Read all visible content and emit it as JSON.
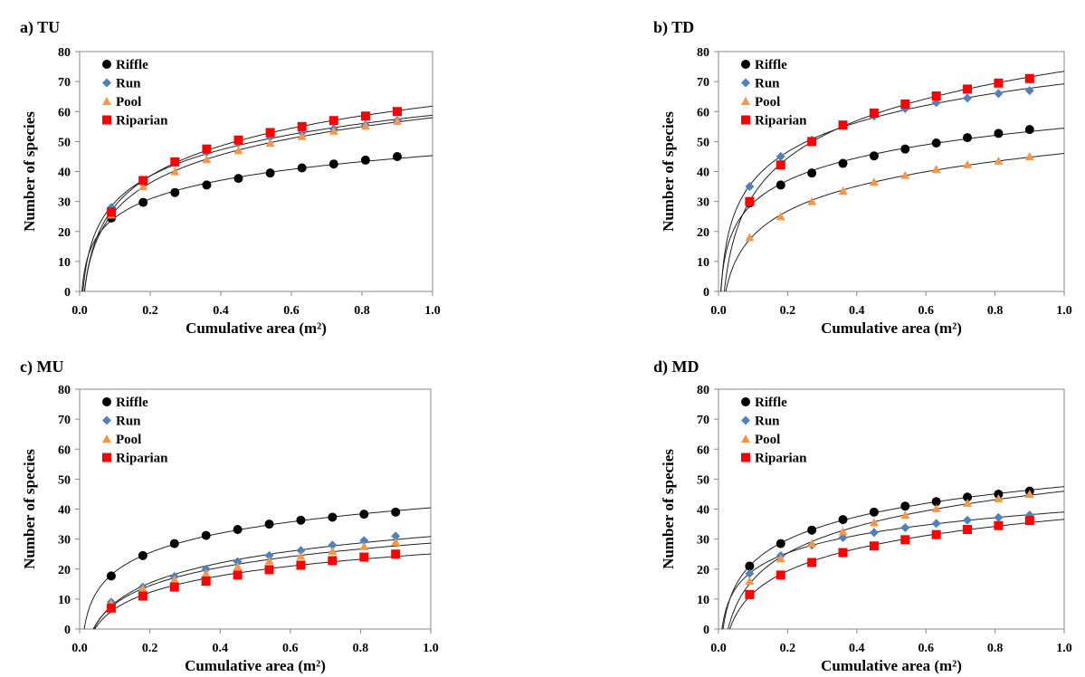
{
  "chart_data": [
    {
      "type": "scatter",
      "title": "a)  TU",
      "xlabel": "Cumulative area (m²)",
      "ylabel": "Number of species",
      "xlim": [
        0,
        1.0
      ],
      "ylim": [
        0,
        80
      ],
      "xticks": [
        "0.0",
        "0.2",
        "0.4",
        "0.6",
        "0.8",
        "1.0"
      ],
      "yticks": [
        "0",
        "10",
        "20",
        "30",
        "40",
        "50",
        "60",
        "70",
        "80"
      ],
      "legend_position": "top-left",
      "x": [
        0.09,
        0.18,
        0.27,
        0.36,
        0.45,
        0.54,
        0.63,
        0.72,
        0.81,
        0.9
      ],
      "series": [
        {
          "name": "Riffle",
          "values": [
            24.5,
            29.7,
            33,
            35.5,
            37.7,
            39.5,
            41.2,
            42.5,
            43.8,
            45
          ]
        },
        {
          "name": "Run",
          "values": [
            28,
            36.5,
            43,
            46.5,
            49.5,
            51.5,
            53,
            54.2,
            55.5,
            57
          ]
        },
        {
          "name": "Pool",
          "values": [
            25.5,
            35,
            40,
            44,
            47,
            49.5,
            51.7,
            53.5,
            55.2,
            56.8
          ]
        },
        {
          "name": "Riparian",
          "values": [
            26.5,
            37,
            43.2,
            47.5,
            50.5,
            53,
            55,
            57,
            58.5,
            60
          ]
        }
      ]
    },
    {
      "type": "scatter",
      "title": "b)  TD",
      "xlabel": "Cumulative area (m²)",
      "ylabel": "Number of species",
      "xlim": [
        0,
        1.0
      ],
      "ylim": [
        0,
        80
      ],
      "xticks": [
        "0.0",
        "0.2",
        "0.4",
        "0.6",
        "0.8",
        "1.0"
      ],
      "yticks": [
        "0",
        "10",
        "20",
        "30",
        "40",
        "50",
        "60",
        "70",
        "80"
      ],
      "legend_position": "top-left",
      "x": [
        0.09,
        0.18,
        0.27,
        0.36,
        0.45,
        0.54,
        0.63,
        0.72,
        0.81,
        0.9
      ],
      "series": [
        {
          "name": "Riffle",
          "values": [
            29.5,
            35.5,
            39.5,
            42.7,
            45.2,
            47.5,
            49.5,
            51.3,
            52.7,
            54
          ]
        },
        {
          "name": "Run",
          "values": [
            35,
            45,
            50.5,
            55.5,
            58.5,
            61,
            63,
            64.5,
            66,
            67
          ]
        },
        {
          "name": "Pool",
          "values": [
            18,
            25,
            30,
            33.5,
            36.5,
            38.7,
            40.7,
            42.3,
            43.5,
            45
          ]
        },
        {
          "name": "Riparian",
          "values": [
            30,
            42.2,
            50,
            55.5,
            59.5,
            62.5,
            65.2,
            67.5,
            69.5,
            71
          ]
        }
      ]
    },
    {
      "type": "scatter",
      "title": "c)  MU",
      "xlabel": "Cumulative area (m²)",
      "ylabel": "Number of species",
      "xlim": [
        0,
        1.0
      ],
      "ylim": [
        0,
        80
      ],
      "xticks": [
        "0.0",
        "0.2",
        "0.4",
        "0.6",
        "0.8",
        "1.0"
      ],
      "yticks": [
        "0",
        "10",
        "20",
        "30",
        "40",
        "50",
        "60",
        "70",
        "80"
      ],
      "legend_position": "top-left",
      "x": [
        0.09,
        0.18,
        0.27,
        0.36,
        0.45,
        0.54,
        0.63,
        0.72,
        0.81,
        0.9
      ],
      "series": [
        {
          "name": "Riffle",
          "values": [
            17.7,
            24.5,
            28.5,
            31.2,
            33.2,
            35,
            36.3,
            37.3,
            38.3,
            39
          ]
        },
        {
          "name": "Run",
          "values": [
            9,
            14,
            17.5,
            20,
            22.5,
            24.5,
            26.2,
            28,
            29.5,
            31
          ]
        },
        {
          "name": "Pool",
          "values": [
            8.5,
            13.5,
            16.5,
            18.5,
            20.8,
            22.7,
            24.3,
            26,
            27.5,
            29
          ]
        },
        {
          "name": "Riparian",
          "values": [
            7,
            11,
            14,
            16,
            18,
            19.8,
            21.3,
            22.8,
            24,
            25
          ]
        }
      ]
    },
    {
      "type": "scatter",
      "title": "d)  MD",
      "xlabel": "Cumulative area (m²)",
      "ylabel": "Number of species",
      "xlim": [
        0,
        1.0
      ],
      "ylim": [
        0,
        80
      ],
      "xticks": [
        "0.0",
        "0.2",
        "0.4",
        "0.6",
        "0.8",
        "1.0"
      ],
      "yticks": [
        "0",
        "10",
        "20",
        "30",
        "40",
        "50",
        "60",
        "70",
        "80"
      ],
      "legend_position": "top-left",
      "x": [
        0.09,
        0.18,
        0.27,
        0.36,
        0.45,
        0.54,
        0.63,
        0.72,
        0.81,
        0.9
      ],
      "series": [
        {
          "name": "Riffle",
          "values": [
            21,
            28.5,
            33,
            36.5,
            39,
            41,
            42.5,
            44,
            45,
            46
          ]
        },
        {
          "name": "Run",
          "values": [
            18.5,
            24.5,
            28,
            30.5,
            32.2,
            33.8,
            35.2,
            36.3,
            37.2,
            38
          ]
        },
        {
          "name": "Pool",
          "values": [
            16,
            23.5,
            28.5,
            32.5,
            35.5,
            38,
            40.2,
            42,
            43.5,
            45
          ]
        },
        {
          "name": "Riparian",
          "values": [
            11.5,
            18,
            22.2,
            25.5,
            27.7,
            29.8,
            31.5,
            33.2,
            34.5,
            36.2
          ]
        }
      ]
    }
  ],
  "colors": {
    "Riffle": "#000000",
    "Run": "#4f81bd",
    "Pool": "#f79646",
    "Riparian": "#ff0000"
  },
  "markers": {
    "Riffle": "circle",
    "Run": "diamond",
    "Pool": "triangle",
    "Riparian": "square"
  }
}
